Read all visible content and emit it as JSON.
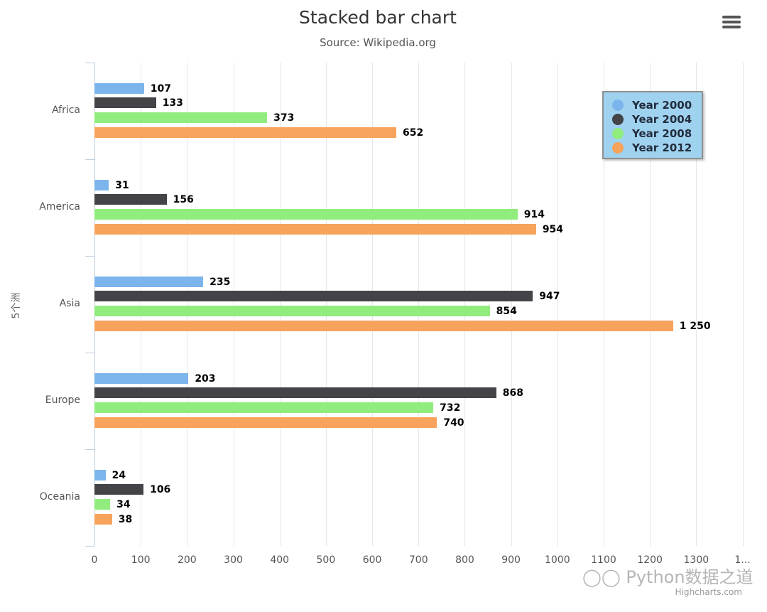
{
  "header": {
    "title": "Stacked bar chart",
    "subtitle": "Source: Wikipedia.org",
    "menu_icon": "hamburger-menu-icon"
  },
  "credits": "Highcharts.com",
  "watermark": "Python数据之道",
  "colors": {
    "Year 2000": "#7cb5ec",
    "Year 2004": "#434348",
    "Year 2008": "#90ed7d",
    "Year 2012": "#f7a35c",
    "legend_bg": "#9fd2ef"
  },
  "chart_data": {
    "type": "bar",
    "orientation": "horizontal",
    "title": "Stacked bar chart",
    "subtitle": "Source: Wikipedia.org",
    "xlabel": "",
    "ylabel": "5个洲",
    "categories": [
      "Africa",
      "America",
      "Asia",
      "Europe",
      "Oceania"
    ],
    "series": [
      {
        "name": "Year 2000",
        "values": [
          107,
          31,
          235,
          203,
          24
        ]
      },
      {
        "name": "Year 2004",
        "values": [
          133,
          156,
          947,
          868,
          106
        ]
      },
      {
        "name": "Year 2008",
        "values": [
          373,
          914,
          854,
          732,
          34
        ]
      },
      {
        "name": "Year 2012",
        "values": [
          652,
          954,
          1250,
          740,
          38
        ]
      }
    ],
    "value_labels": {
      "Year 2000": [
        "107",
        "31",
        "235",
        "203",
        "24"
      ],
      "Year 2004": [
        "133",
        "156",
        "947",
        "868",
        "106"
      ],
      "Year 2008": [
        "373",
        "914",
        "854",
        "732",
        "34"
      ],
      "Year 2012": [
        "652",
        "954",
        "1 250",
        "740",
        "38"
      ]
    },
    "x_ticks": [
      "0",
      "100",
      "200",
      "300",
      "400",
      "500",
      "600",
      "700",
      "800",
      "900",
      "1000",
      "1100",
      "1200",
      "1300",
      "1..."
    ],
    "xlim": [
      0,
      1400
    ],
    "grid": true,
    "legend": {
      "position": "top-right-inside",
      "entries": [
        "Year 2000",
        "Year 2004",
        "Year 2008",
        "Year 2012"
      ]
    }
  }
}
